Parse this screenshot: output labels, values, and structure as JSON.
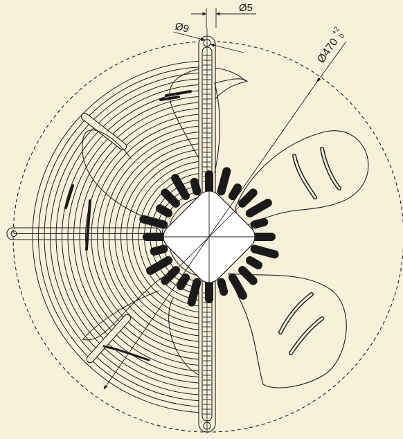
{
  "drawing": {
    "dimensions": {
      "shaft_diameter": "Ø5",
      "hole_diameter": "Ø9",
      "fan_diameter": "Ø470",
      "fan_tolerance_upper": "+2",
      "fan_tolerance_lower": "0"
    },
    "colors": {
      "paper": "#f7f0da",
      "ink": "#1a1a1a",
      "motor_body": "#ffffff"
    }
  }
}
